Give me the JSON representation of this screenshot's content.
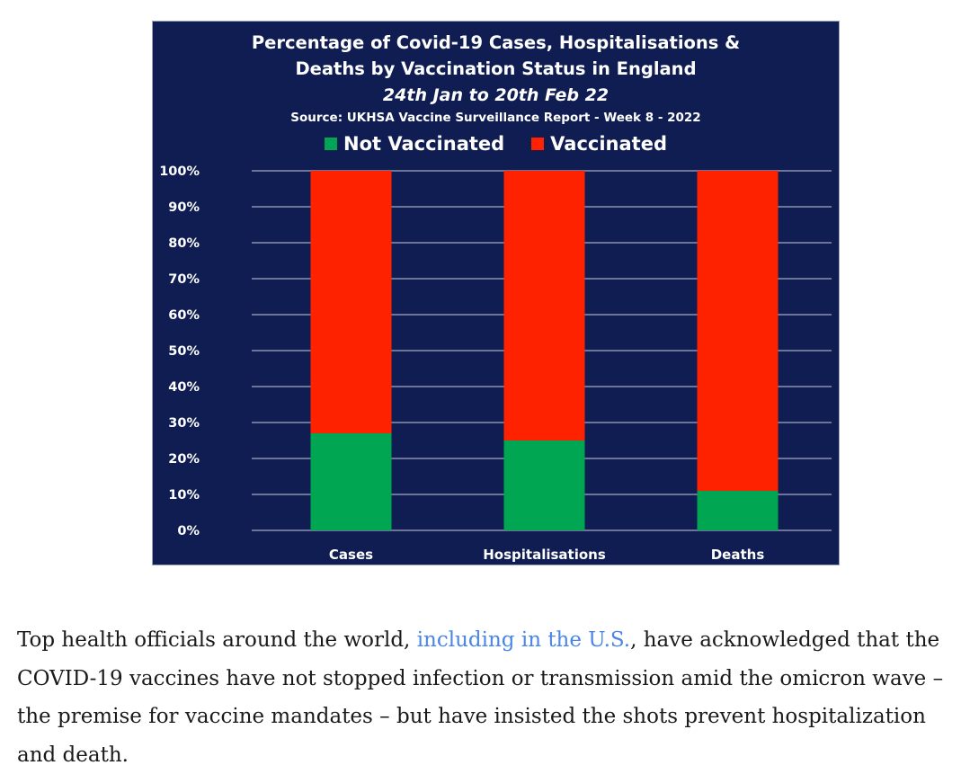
{
  "chart_data": {
    "type": "bar",
    "stacked": true,
    "title": "Percentage of Covid-19 Cases, Hospitalisations &",
    "title_line2": "Deaths by Vaccination Status in England",
    "subtitle": "24th Jan to 20th Feb 22",
    "source": "Source: UKHSA Vaccine Surveillance Report - Week 8 - 2022",
    "categories": [
      "Cases",
      "Hospitalisations",
      "Deaths"
    ],
    "series": [
      {
        "name": "Not Vaccinated",
        "color": "#00a651",
        "values": [
          27,
          25,
          11
        ]
      },
      {
        "name": "Vaccinated",
        "color": "#ff2200",
        "values": [
          73,
          75,
          89
        ]
      }
    ],
    "ylim": [
      0,
      100
    ],
    "yticks": [
      "0%",
      "10%",
      "20%",
      "30%",
      "40%",
      "50%",
      "60%",
      "70%",
      "80%",
      "90%",
      "100%"
    ],
    "grid": true,
    "legend_position": "top",
    "background": "#0f1d52"
  },
  "caption": {
    "before": "Top health officials around the world, ",
    "link": "including in the U.S.",
    "after": ", have acknowledged that the COVID-19 vaccines have not stopped infection or transmission amid the omicron wave – the premise for vaccine mandates – but have insisted the shots prevent hospitalization and death."
  }
}
